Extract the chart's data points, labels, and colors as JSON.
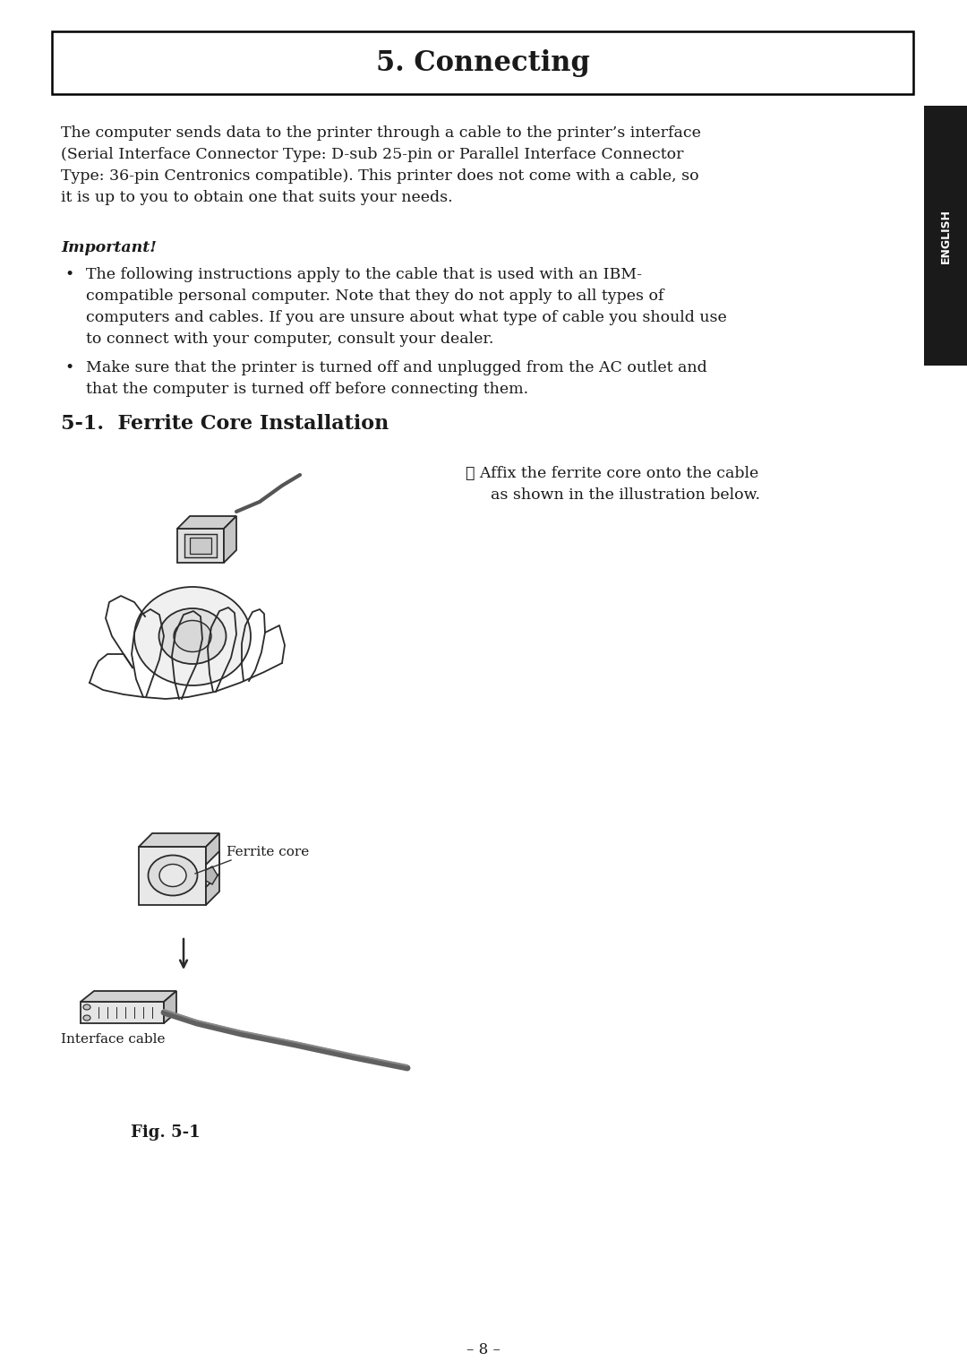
{
  "page_bg": "#ffffff",
  "title": "5. Connecting",
  "title_fontsize": 22,
  "title_box_color": "#ffffff",
  "title_box_edge": "#000000",
  "sidebar_color": "#1a1a1a",
  "sidebar_text": "ENGLISH",
  "sidebar_text_color": "#ffffff",
  "body_text_color": "#1a1a1a",
  "body_fontsize": 12.5,
  "paragraph1_lines": [
    "The computer sends data to the printer through a cable to the printer’s interface",
    "(Serial Interface Connector Type: D-sub 25-pin or Parallel Interface Connector",
    "Type: 36-pin Centronics compatible). This printer does not come with a cable, so",
    "it is up to you to obtain one that suits your needs."
  ],
  "important_label": "Important!",
  "bullet1_lines": [
    "The following instructions apply to the cable that is used with an IBM-",
    "compatible personal computer. Note that they do not apply to all types of",
    "computers and cables. If you are unsure about what type of cable you should use",
    "to connect with your computer, consult your dealer."
  ],
  "bullet2_lines": [
    "Make sure that the printer is turned off and unplugged from the AC outlet and",
    "that the computer is turned off before connecting them."
  ],
  "section_title": "5-1.  Ferrite Core Installation",
  "section_fontsize": 16,
  "step1_circle": "①",
  "step1_line1": "Affix the ferrite core onto the cable",
  "step1_line2": "as shown in the illustration below.",
  "ferrite_core_label": "Ferrite core",
  "interface_cable_label": "Interface cable",
  "fig_label": "Fig. 5-1",
  "page_number": "– 8 –"
}
